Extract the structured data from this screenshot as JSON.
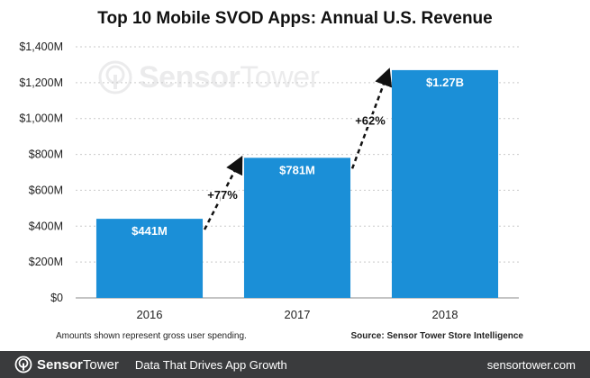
{
  "chart_data": {
    "type": "bar",
    "title": "Top 10 Mobile SVOD Apps: Annual U.S. Revenue",
    "categories": [
      "2016",
      "2017",
      "2018"
    ],
    "values": [
      441,
      781,
      1270
    ],
    "value_labels": [
      "$441M",
      "$781M",
      "$1.27B"
    ],
    "ylim": [
      0,
      1400
    ],
    "yticks": [
      0,
      200,
      400,
      600,
      800,
      1000,
      1200,
      1400
    ],
    "ytick_labels": [
      "$0",
      "$200M",
      "$400M",
      "$600M",
      "$800M",
      "$1,000M",
      "$1,200M",
      "$1,400M"
    ],
    "grid": true,
    "bar_color": "#1b8fd7",
    "annotations": [
      {
        "from": "2016",
        "to": "2017",
        "label": "+77%"
      },
      {
        "from": "2017",
        "to": "2018",
        "label": "+62%"
      }
    ],
    "xlabel": "",
    "ylabel": ""
  },
  "watermark": {
    "brand_bold": "Sensor",
    "brand_light": "Tower"
  },
  "footnote": "Amounts shown represent gross user spending.",
  "source": "Source: Sensor Tower Store Intelligence",
  "footer": {
    "brand_bold": "Sensor",
    "brand_light": "Tower",
    "tagline": "Data That Drives App Growth",
    "url": "sensortower.com"
  },
  "colors": {
    "footer_bg": "#3a3b3d",
    "accent": "#1b8fd7"
  }
}
